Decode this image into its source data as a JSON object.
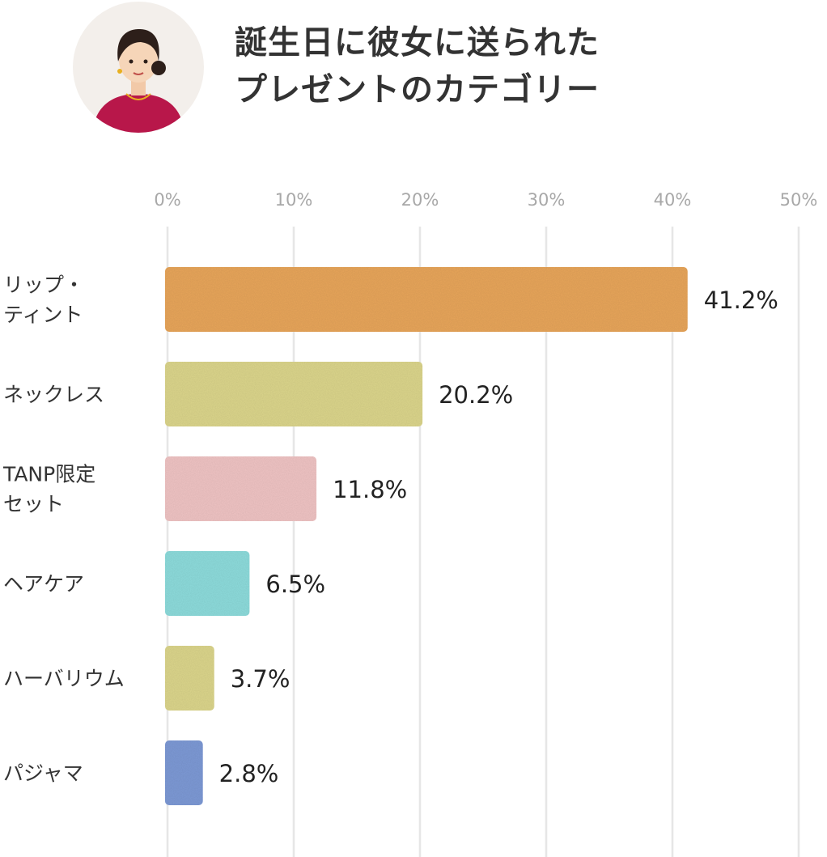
{
  "header": {
    "title_line1": "誕生日に彼女に送られた",
    "title_line2": "プレゼントのカテゴリー"
  },
  "icons": {
    "avatar": "woman-avatar-icon"
  },
  "chart_data": {
    "type": "bar",
    "orientation": "horizontal",
    "categories": [
      [
        "リップ・",
        "ティント"
      ],
      [
        "ネックレス"
      ],
      [
        "TANP限定",
        "セット"
      ],
      [
        "ヘアケア"
      ],
      [
        "ハーバリウム"
      ],
      [
        "パジャマ"
      ]
    ],
    "values": [
      41.2,
      20.2,
      11.8,
      6.5,
      3.7,
      2.8
    ],
    "value_labels": [
      "41.2%",
      "20.2%",
      "11.8%",
      "6.5%",
      "3.7%",
      "2.8%"
    ],
    "colors": [
      "#e8a65c",
      "#dcd68c",
      "#f0c4c4",
      "#8edcdc",
      "#dcd68c",
      "#7e9ad6"
    ],
    "xlim": [
      0,
      50
    ],
    "ticks": [
      0,
      10,
      20,
      30,
      40,
      50
    ],
    "tick_labels": [
      "0%",
      "10%",
      "20%",
      "30%",
      "40%",
      "50%"
    ],
    "grid": true,
    "axis_position": "top",
    "title": "",
    "xlabel": "",
    "ylabel": ""
  }
}
